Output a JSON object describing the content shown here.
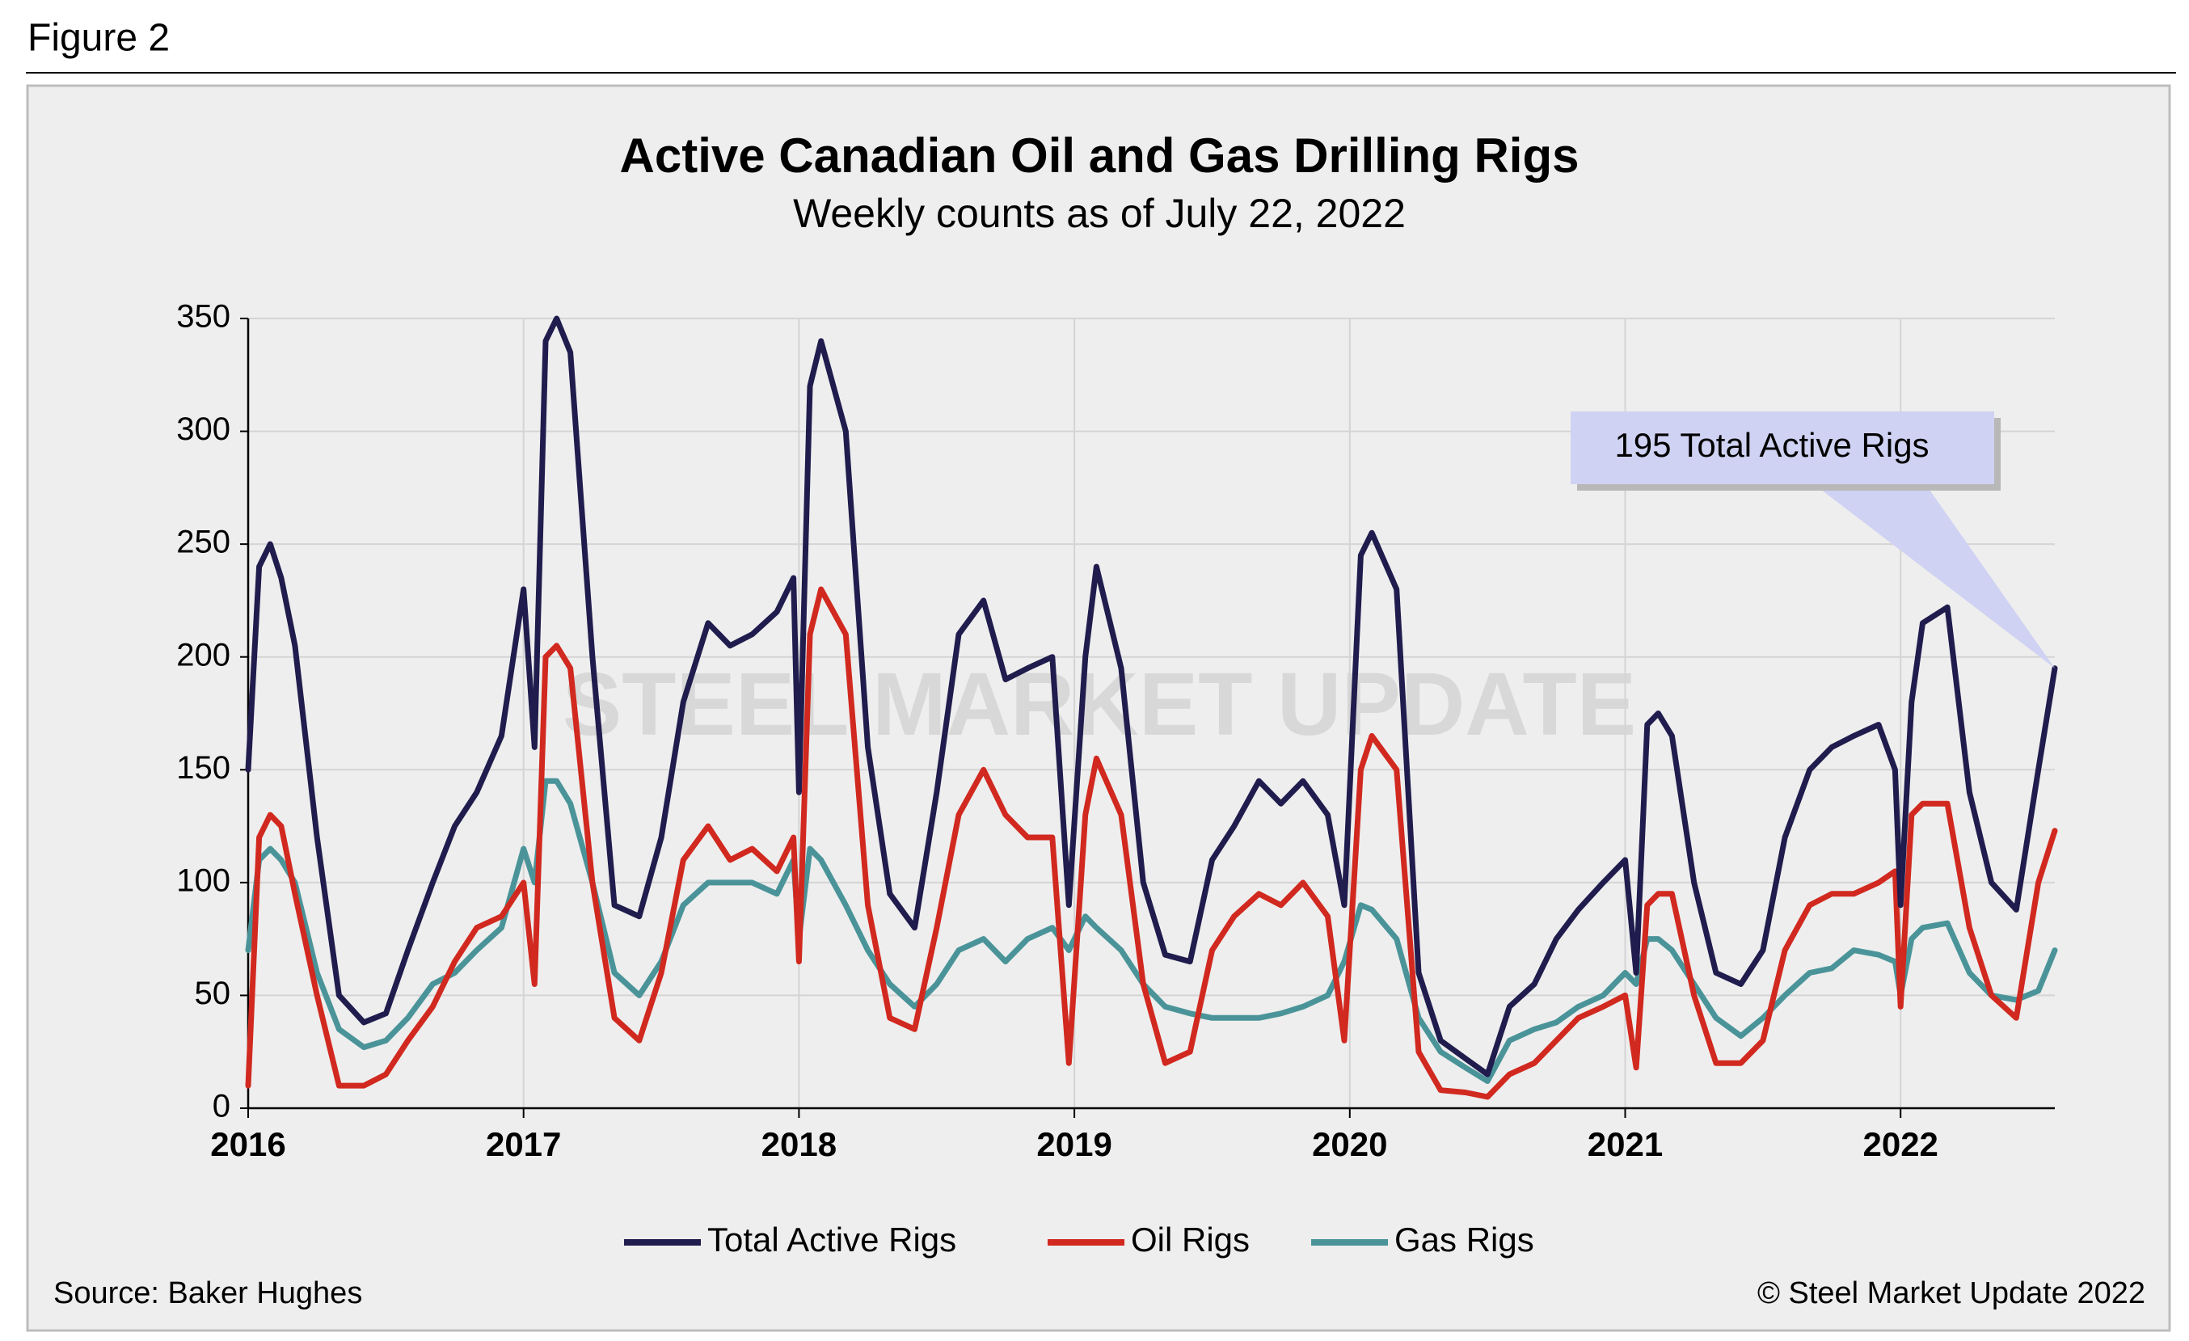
{
  "chart_data": {
    "type": "line",
    "figure_label": "Figure 2",
    "title": "Active Canadian Oil and Gas Drilling Rigs",
    "subtitle": "Weekly counts as of July 22, 2022",
    "source": "Source: Baker Hughes",
    "copyright": "© Steel Market Update 2022",
    "watermark": "STEEL MARKET UPDATE",
    "annotation": "195 Total Active Rigs",
    "legend": "bottom",
    "xlim": [
      2016,
      2022.56
    ],
    "xticks": [
      2016,
      2017,
      2018,
      2019,
      2020,
      2021,
      2022
    ],
    "ylim": [
      0,
      350
    ],
    "yticks": [
      0,
      50,
      100,
      150,
      200,
      250,
      300,
      350
    ],
    "grid": true,
    "x": [
      2016.0,
      2016.04,
      2016.08,
      2016.12,
      2016.17,
      2016.25,
      2016.33,
      2016.42,
      2016.5,
      2016.58,
      2016.67,
      2016.75,
      2016.83,
      2016.92,
      2017.0,
      2017.04,
      2017.08,
      2017.12,
      2017.17,
      2017.25,
      2017.33,
      2017.42,
      2017.5,
      2017.58,
      2017.67,
      2017.75,
      2017.83,
      2017.92,
      2017.98,
      2018.0,
      2018.04,
      2018.08,
      2018.17,
      2018.25,
      2018.33,
      2018.42,
      2018.5,
      2018.58,
      2018.67,
      2018.75,
      2018.83,
      2018.92,
      2018.98,
      2019.04,
      2019.08,
      2019.17,
      2019.25,
      2019.33,
      2019.42,
      2019.5,
      2019.58,
      2019.67,
      2019.75,
      2019.83,
      2019.92,
      2019.98,
      2020.04,
      2020.08,
      2020.17,
      2020.25,
      2020.33,
      2020.42,
      2020.5,
      2020.58,
      2020.67,
      2020.75,
      2020.83,
      2020.92,
      2021.0,
      2021.04,
      2021.08,
      2021.12,
      2021.17,
      2021.25,
      2021.33,
      2021.42,
      2021.5,
      2021.58,
      2021.67,
      2021.75,
      2021.83,
      2021.92,
      2021.98,
      2022.0,
      2022.04,
      2022.08,
      2022.17,
      2022.25,
      2022.33,
      2022.42,
      2022.5,
      2022.56
    ],
    "series": [
      {
        "name": "Total Active Rigs",
        "color": "#201c4d",
        "values": [
          150,
          240,
          250,
          235,
          205,
          120,
          50,
          38,
          42,
          70,
          100,
          125,
          140,
          165,
          230,
          160,
          340,
          350,
          335,
          200,
          90,
          85,
          120,
          180,
          215,
          205,
          210,
          220,
          235,
          140,
          320,
          340,
          300,
          160,
          95,
          80,
          140,
          210,
          225,
          190,
          195,
          200,
          90,
          200,
          240,
          195,
          100,
          68,
          65,
          110,
          125,
          145,
          135,
          145,
          130,
          90,
          245,
          255,
          230,
          60,
          30,
          22,
          15,
          45,
          55,
          75,
          88,
          100,
          110,
          60,
          170,
          175,
          165,
          100,
          60,
          55,
          70,
          120,
          150,
          160,
          165,
          170,
          150,
          90,
          180,
          215,
          222,
          140,
          100,
          88,
          150,
          195
        ]
      },
      {
        "name": "Oil Rigs",
        "color": "#d1291f",
        "values": [
          10,
          120,
          130,
          125,
          95,
          50,
          10,
          10,
          15,
          30,
          45,
          65,
          80,
          85,
          100,
          55,
          200,
          205,
          195,
          100,
          40,
          30,
          60,
          110,
          125,
          110,
          115,
          105,
          120,
          65,
          210,
          230,
          210,
          90,
          40,
          35,
          80,
          130,
          150,
          130,
          120,
          120,
          20,
          130,
          155,
          130,
          55,
          20,
          25,
          70,
          85,
          95,
          90,
          100,
          85,
          30,
          150,
          165,
          150,
          25,
          8,
          7,
          5,
          15,
          20,
          30,
          40,
          45,
          50,
          18,
          90,
          95,
          95,
          50,
          20,
          20,
          30,
          70,
          90,
          95,
          95,
          100,
          105,
          45,
          130,
          135,
          135,
          80,
          50,
          40,
          100,
          123
        ]
      },
      {
        "name": "Gas Rigs",
        "color": "#4a9499",
        "values": [
          70,
          110,
          115,
          110,
          100,
          60,
          35,
          27,
          30,
          40,
          55,
          60,
          70,
          80,
          115,
          100,
          145,
          145,
          135,
          100,
          60,
          50,
          65,
          90,
          100,
          100,
          100,
          95,
          110,
          75,
          115,
          110,
          90,
          70,
          55,
          45,
          55,
          70,
          75,
          65,
          75,
          80,
          70,
          85,
          80,
          70,
          55,
          45,
          42,
          40,
          40,
          40,
          42,
          45,
          50,
          65,
          90,
          88,
          75,
          40,
          25,
          18,
          12,
          30,
          35,
          38,
          45,
          50,
          60,
          55,
          75,
          75,
          70,
          55,
          40,
          32,
          40,
          50,
          60,
          62,
          70,
          68,
          65,
          50,
          75,
          80,
          82,
          60,
          50,
          48,
          52,
          70
        ]
      }
    ]
  }
}
